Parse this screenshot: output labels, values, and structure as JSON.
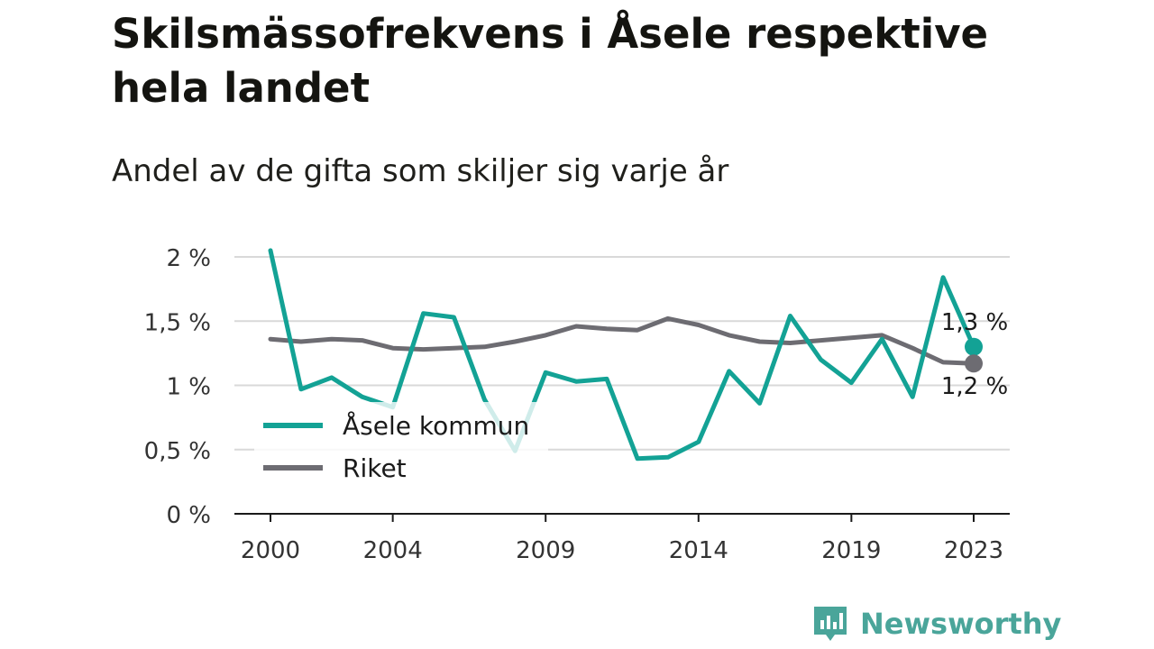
{
  "title": "Skilsmässofrekvens i Åsele respektive hela landet",
  "subtitle": "Andel av de gifta som skiljer sig varje år",
  "brand": {
    "name": "Newsworthy",
    "icon": "newsworthy-logo-icon",
    "color": "#4aa59a"
  },
  "colors": {
    "asele": "#13a295",
    "riket": "#6d6c72",
    "grid": "#d9d9d9",
    "axis": "#1a1a1a"
  },
  "chart_data": {
    "type": "line",
    "x": [
      2000,
      2001,
      2002,
      2003,
      2004,
      2005,
      2006,
      2007,
      2008,
      2009,
      2010,
      2011,
      2012,
      2013,
      2014,
      2015,
      2016,
      2017,
      2018,
      2019,
      2020,
      2021,
      2022,
      2023
    ],
    "x_ticks": [
      2000,
      2004,
      2009,
      2014,
      2019,
      2023
    ],
    "x_tick_labels": [
      "2000",
      "2004",
      "2009",
      "2014",
      "2019",
      "2023"
    ],
    "ylim": [
      0,
      2
    ],
    "y_ticks": [
      0,
      0.5,
      1,
      1.5,
      2
    ],
    "y_tick_labels": [
      "0 %",
      "0,5 %",
      "1 %",
      "1,5 %",
      "2 %"
    ],
    "grid": true,
    "legend_position": "bottom-left",
    "series": [
      {
        "name": "Åsele kommun",
        "values": [
          2.05,
          0.97,
          1.06,
          0.91,
          0.83,
          1.56,
          1.53,
          0.89,
          0.49,
          1.1,
          1.03,
          1.05,
          0.43,
          0.44,
          0.56,
          1.11,
          0.86,
          1.54,
          1.2,
          1.02,
          1.36,
          0.91,
          1.84,
          1.3
        ],
        "end_label": "1,3 %"
      },
      {
        "name": "Riket",
        "values": [
          1.36,
          1.34,
          1.36,
          1.35,
          1.29,
          1.28,
          1.29,
          1.3,
          1.34,
          1.39,
          1.46,
          1.44,
          1.43,
          1.52,
          1.47,
          1.39,
          1.34,
          1.33,
          1.35,
          1.37,
          1.39,
          1.29,
          1.18,
          1.17
        ],
        "end_label": "1,2 %"
      }
    ]
  }
}
